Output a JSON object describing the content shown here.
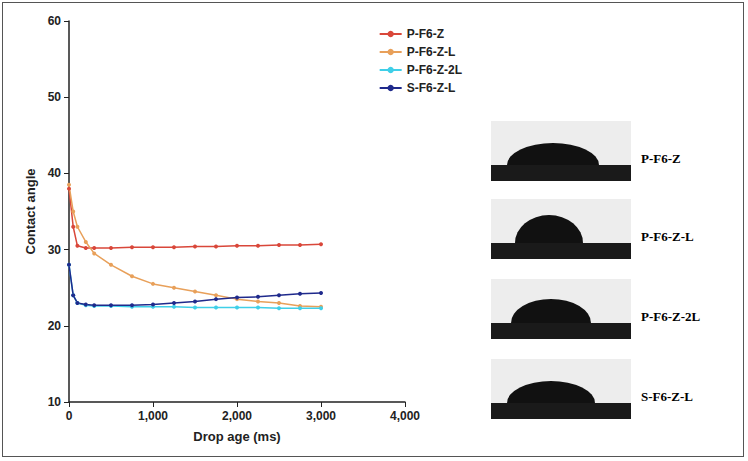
{
  "chart_data": {
    "type": "line",
    "x_label": "Drop age (ms)",
    "y_label": "Contact angle",
    "xlim": [
      0,
      4000
    ],
    "xticks": [
      0,
      1000,
      2000,
      3000,
      4000
    ],
    "ylim": [
      10,
      60
    ],
    "yticks": [
      10,
      20,
      30,
      40,
      50,
      60
    ],
    "grid": false,
    "legend": "top right",
    "marker": "circle",
    "line_style": "solid",
    "series": [
      {
        "name": "P-F6-Z",
        "color": "#d9473a",
        "x": [
          0,
          50,
          100,
          200,
          300,
          500,
          750,
          1000,
          1250,
          1500,
          1750,
          2000,
          2250,
          2500,
          2750,
          3000
        ],
        "values": [
          38,
          33,
          30.5,
          30.2,
          30.2,
          30.2,
          30.3,
          30.3,
          30.3,
          30.4,
          30.4,
          30.5,
          30.5,
          30.6,
          30.6,
          30.7
        ]
      },
      {
        "name": "P-F6-Z-L",
        "color": "#e8a05a",
        "x": [
          0,
          50,
          100,
          200,
          300,
          500,
          750,
          1000,
          1250,
          1500,
          1750,
          2000,
          2250,
          2500,
          2750,
          3000
        ],
        "values": [
          38.5,
          35,
          33,
          31,
          29.5,
          28,
          26.5,
          25.5,
          25,
          24.5,
          24,
          23.5,
          23.2,
          23,
          22.6,
          22.5
        ]
      },
      {
        "name": "P-F6-Z-2L",
        "color": "#3fcfe8",
        "x": [
          0,
          50,
          100,
          200,
          300,
          500,
          750,
          1000,
          1250,
          1500,
          1750,
          2000,
          2250,
          2500,
          2750,
          3000
        ],
        "values": [
          28,
          24,
          23,
          22.7,
          22.6,
          22.6,
          22.5,
          22.5,
          22.5,
          22.4,
          22.4,
          22.4,
          22.4,
          22.3,
          22.3,
          22.3
        ]
      },
      {
        "name": "S-F6-Z-L",
        "color": "#1f2a8c",
        "x": [
          0,
          50,
          100,
          200,
          300,
          500,
          750,
          1000,
          1250,
          1500,
          1750,
          2000,
          2250,
          2500,
          2750,
          3000
        ],
        "values": [
          28,
          24,
          23,
          22.8,
          22.7,
          22.7,
          22.7,
          22.8,
          23,
          23.2,
          23.5,
          23.7,
          23.8,
          24,
          24.2,
          24.3
        ]
      }
    ]
  },
  "side_panel": {
    "images": [
      "P-F6-Z",
      "P-F6-Z-L",
      "P-F6-Z-2L",
      "S-F6-Z-L"
    ]
  }
}
